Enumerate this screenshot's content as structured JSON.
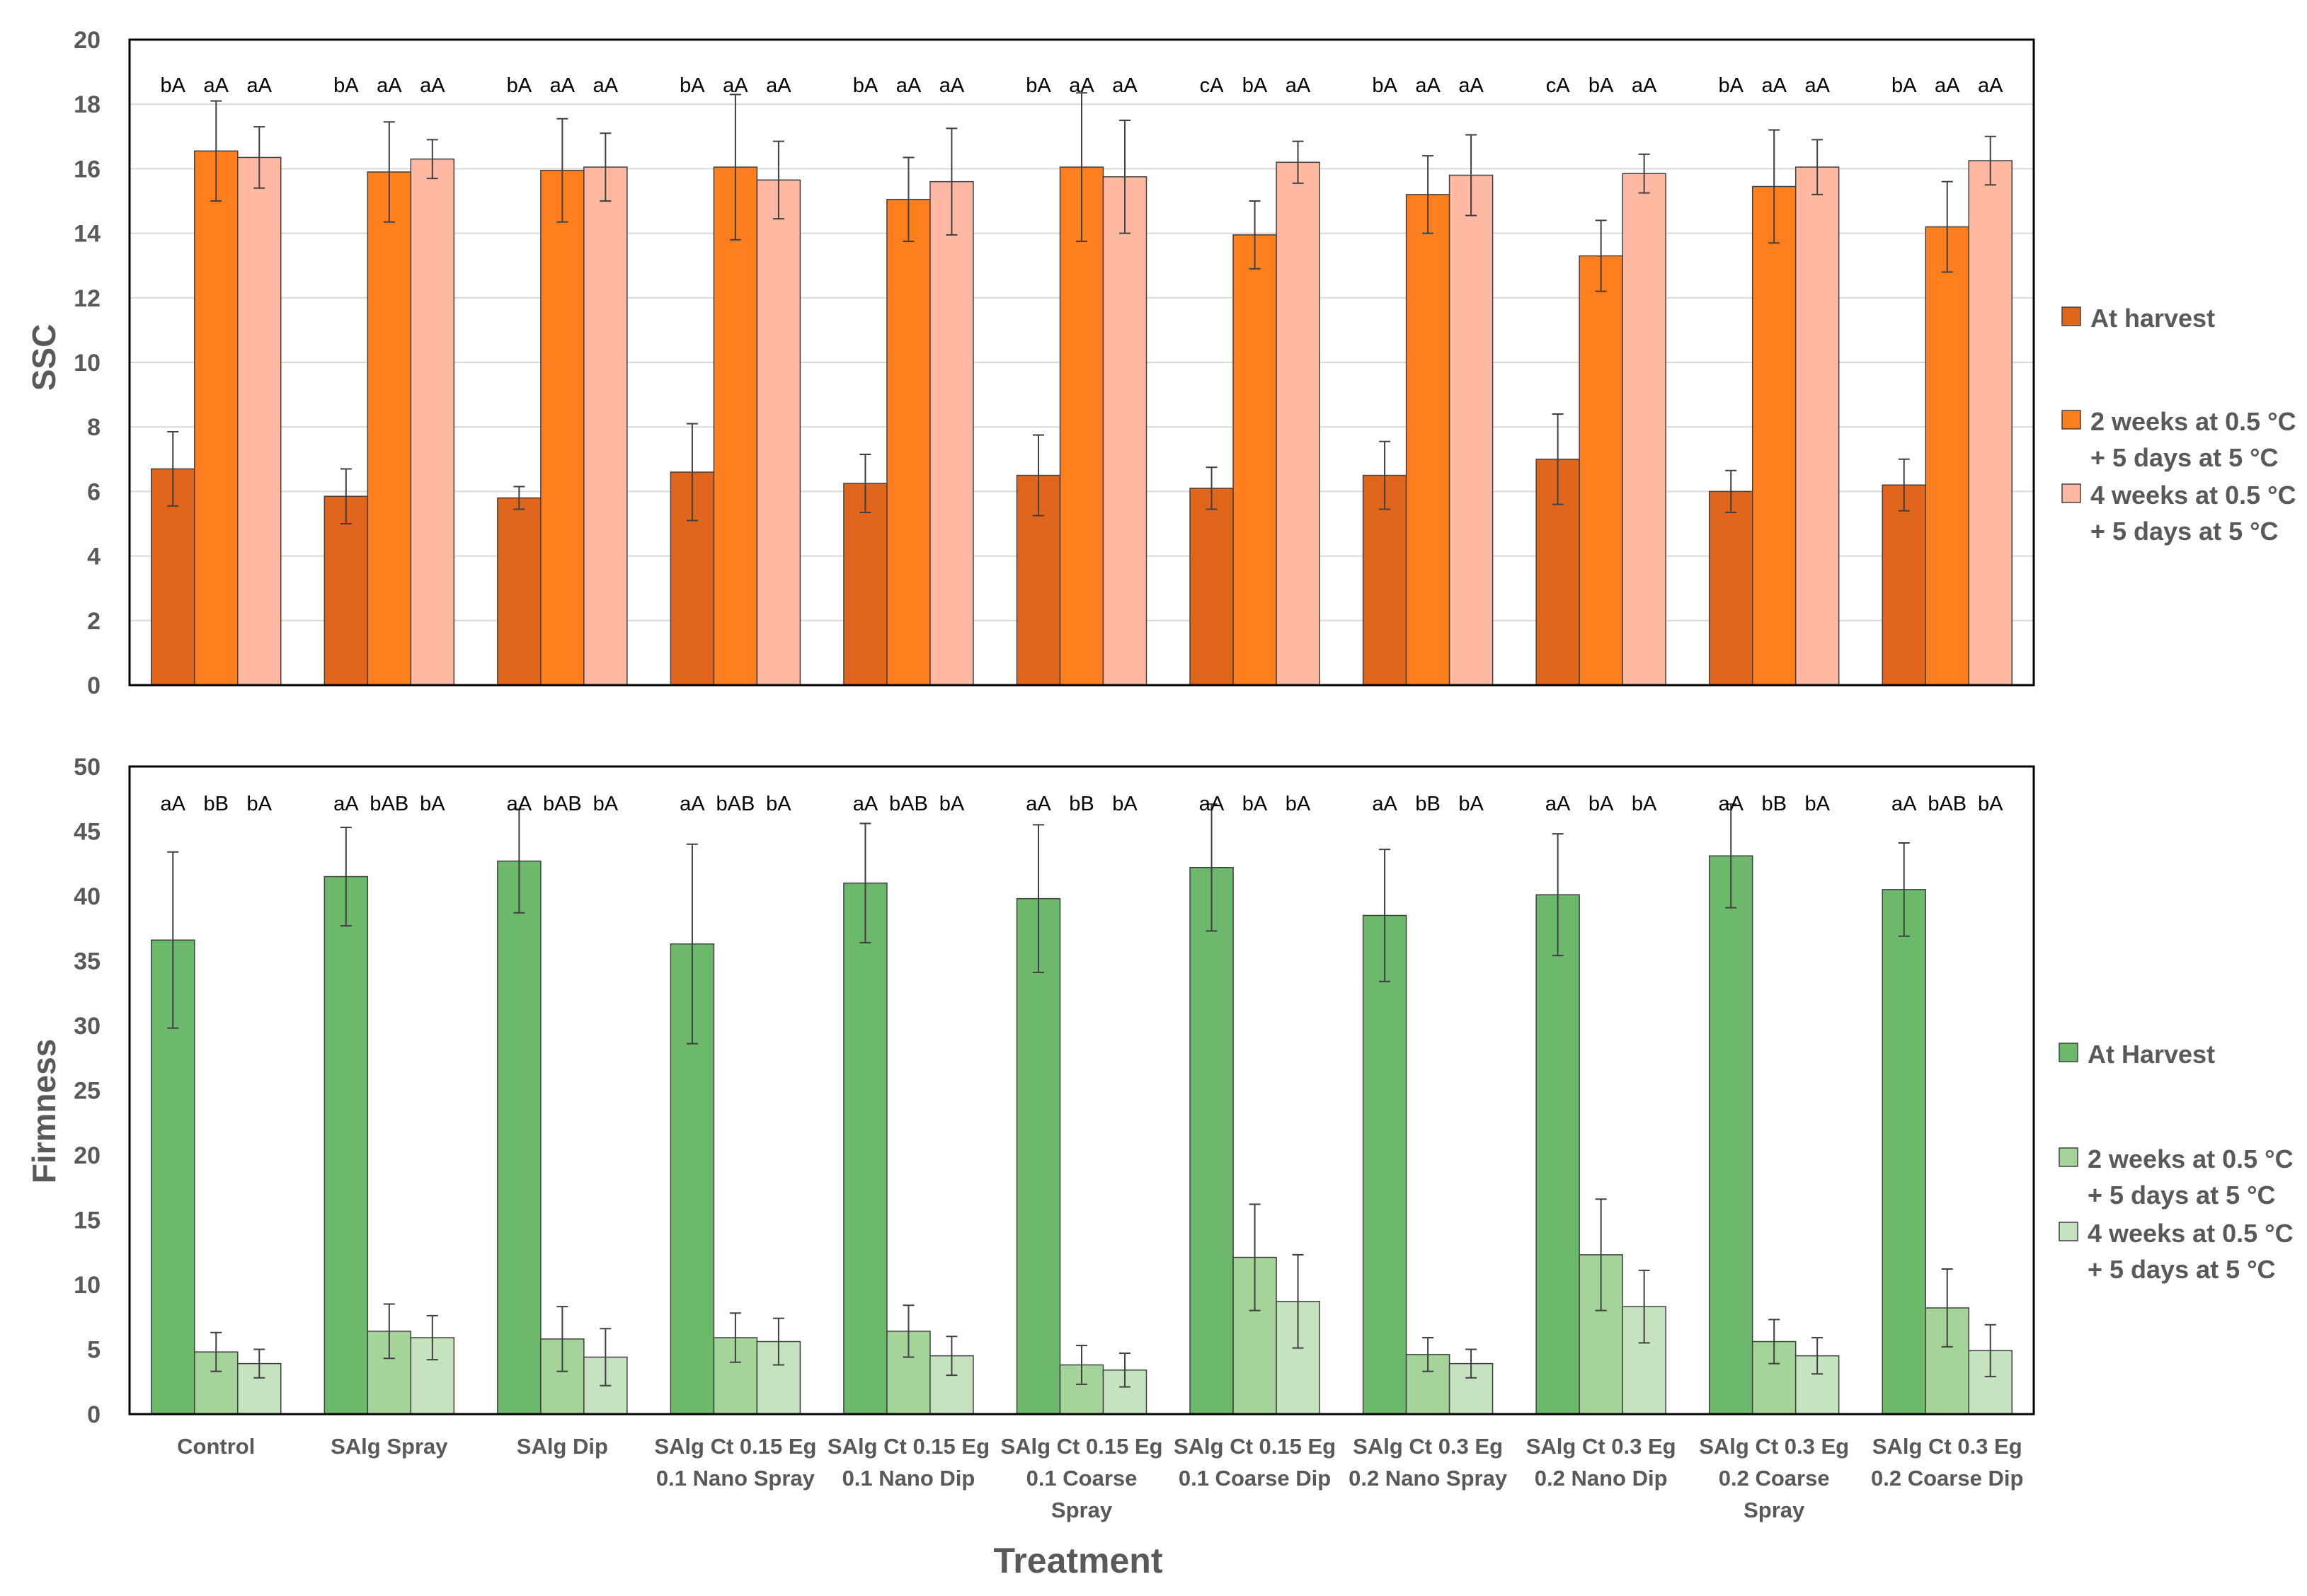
{
  "x_axis_title": "Treatment",
  "categories": [
    [
      "Control"
    ],
    [
      "SAlg  Spray"
    ],
    [
      "SAlg  Dip"
    ],
    [
      "SAlg Ct 0.15 Eg",
      "0.1 Nano Spray"
    ],
    [
      "SAlg Ct 0.15 Eg",
      "0.1 Nano Dip"
    ],
    [
      "SAlg Ct 0.15 Eg",
      "0.1 Coarse",
      "Spray"
    ],
    [
      "SAlg Ct 0.15 Eg",
      "0.1 Coarse Dip"
    ],
    [
      "SAlg Ct 0.3 Eg",
      "0.2 Nano Spray"
    ],
    [
      "SAlg Ct 0.3 Eg",
      "0.2 Nano Dip"
    ],
    [
      "SAlg Ct 0.3 Eg",
      "0.2 Coarse",
      "Spray"
    ],
    [
      "SAlg Ct 0.3 Eg",
      "0.2 Coarse Dip"
    ]
  ],
  "chart_data": [
    {
      "type": "bar",
      "ylabel": "SSC",
      "ylim": [
        0,
        20
      ],
      "yticks": [
        0,
        2,
        4,
        6,
        8,
        10,
        12,
        14,
        16,
        18,
        20
      ],
      "grid": true,
      "legend_position": "right",
      "series": [
        {
          "name": "At harvest",
          "legend_lines": [
            "At harvest"
          ],
          "color": "#E0661E",
          "values": [
            6.7,
            5.85,
            5.8,
            6.6,
            6.25,
            6.5,
            6.1,
            6.5,
            7.0,
            6.0,
            6.2
          ],
          "errors": [
            1.15,
            0.85,
            0.35,
            1.5,
            0.9,
            1.25,
            0.65,
            1.05,
            1.4,
            0.65,
            0.8
          ],
          "letters": [
            "bA",
            "bA",
            "bA",
            "bA",
            "bA",
            "bA",
            "cA",
            "bA",
            "cA",
            "bA",
            "bA"
          ]
        },
        {
          "name": "2 weeks at 0.5 °C + 5 days  at 5 °C",
          "legend_lines": [
            "2 weeks at 0.5 °C",
            "+ 5 days  at 5 °C"
          ],
          "color": "#FF7F1E",
          "values": [
            16.55,
            15.9,
            15.95,
            16.05,
            15.05,
            16.05,
            13.95,
            15.2,
            13.3,
            15.45,
            14.2
          ],
          "errors": [
            1.55,
            1.55,
            1.6,
            2.25,
            1.3,
            2.3,
            1.05,
            1.2,
            1.1,
            1.75,
            1.4
          ],
          "letters": [
            "aA",
            "aA",
            "aA",
            "aA",
            "aA",
            "aA",
            "bA",
            "aA",
            "bA",
            "aA",
            "aA"
          ]
        },
        {
          "name": "4 weeks at 0.5 °C + 5 days  at 5 °C",
          "legend_lines": [
            "4 weeks at 0.5 °C",
            "+ 5 days  at 5 °C"
          ],
          "color": "#FFB8A1",
          "values": [
            16.35,
            16.3,
            16.05,
            15.65,
            15.6,
            15.75,
            16.2,
            15.8,
            15.85,
            16.05,
            16.25
          ],
          "errors": [
            0.95,
            0.6,
            1.05,
            1.2,
            1.65,
            1.75,
            0.65,
            1.25,
            0.6,
            0.85,
            0.75
          ],
          "letters": [
            "aA",
            "aA",
            "aA",
            "aA",
            "aA",
            "aA",
            "aA",
            "aA",
            "aA",
            "aA",
            "aA"
          ]
        }
      ]
    },
    {
      "type": "bar",
      "ylabel": "Firmness",
      "ylim": [
        0,
        50
      ],
      "yticks": [
        0,
        5,
        10,
        15,
        20,
        25,
        30,
        35,
        40,
        45,
        50
      ],
      "grid": false,
      "legend_position": "right",
      "series": [
        {
          "name": "At Harvest",
          "legend_lines": [
            "At Harvest"
          ],
          "color": "#6DB96B",
          "values": [
            36.6,
            41.5,
            42.7,
            36.3,
            41.0,
            39.8,
            42.2,
            38.5,
            40.1,
            43.1,
            40.5
          ],
          "errors": [
            6.8,
            3.8,
            4.0,
            7.7,
            4.6,
            5.7,
            4.9,
            5.1,
            4.7,
            4.0,
            3.6
          ],
          "letters": [
            "aA",
            "aA",
            "aA",
            "aA",
            "aA",
            "aA",
            "aA",
            "aA",
            "aA",
            "aA",
            "aA"
          ]
        },
        {
          "name": "2 weeks at 0.5 °C + 5 days  at 5 °C",
          "legend_lines": [
            "2 weeks at 0.5 °C",
            "+ 5 days  at 5 °C"
          ],
          "color": "#A4D49A",
          "values": [
            4.8,
            6.4,
            5.8,
            5.9,
            6.4,
            3.8,
            12.1,
            4.6,
            12.3,
            5.6,
            8.2
          ],
          "errors": [
            1.5,
            2.1,
            2.5,
            1.9,
            2.0,
            1.5,
            4.1,
            1.3,
            4.3,
            1.7,
            3.0
          ],
          "letters": [
            "bB",
            "bAB",
            "bAB",
            "bAB",
            "bAB",
            "bB",
            "bA",
            "bB",
            "bA",
            "bB",
            "bAB"
          ]
        },
        {
          "name": "4 weeks at 0.5 °C + 5 days  at 5 °C",
          "legend_lines": [
            "4 weeks at 0.5 °C",
            "+ 5 days  at 5 °C"
          ],
          "color": "#C6E3C0",
          "values": [
            3.9,
            5.9,
            4.4,
            5.6,
            4.5,
            3.4,
            8.7,
            3.9,
            8.3,
            4.5,
            4.9
          ],
          "errors": [
            1.1,
            1.7,
            2.2,
            1.8,
            1.5,
            1.3,
            3.6,
            1.1,
            2.8,
            1.4,
            2.0
          ],
          "letters": [
            "bA",
            "bA",
            "bA",
            "bA",
            "bA",
            "bA",
            "bA",
            "bA",
            "bA",
            "bA",
            "bA"
          ]
        }
      ]
    }
  ]
}
